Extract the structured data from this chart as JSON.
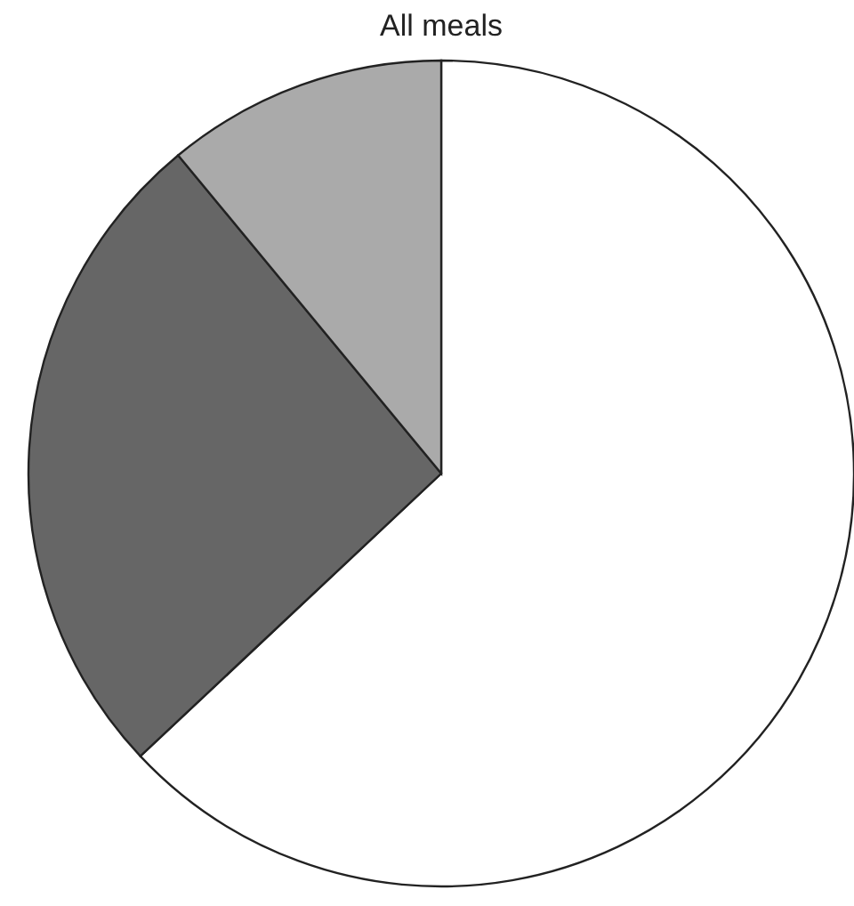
{
  "chart_data": {
    "type": "pie",
    "title": "All meals",
    "categories": [
      null,
      null,
      null
    ],
    "values": [
      63,
      26,
      11
    ],
    "colors": [
      "#ffffff",
      "#666666",
      "#aaaaaa"
    ]
  }
}
